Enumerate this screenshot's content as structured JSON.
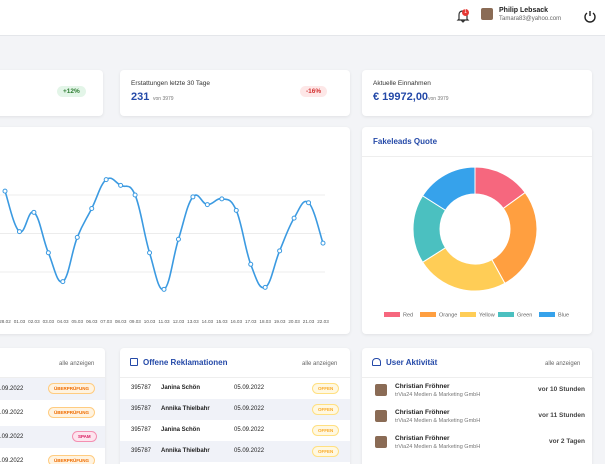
{
  "header": {
    "notification_count": "1",
    "user_name": "Philip Lebsack",
    "user_email": "Tamara83@yahoo.com"
  },
  "stats": [
    {
      "badge": "+12%"
    },
    {
      "title": "Erstattungen letzte 30 Tage",
      "value": "231",
      "sub": "von 3979",
      "badge": "-16%"
    },
    {
      "title": "Aktuelle Einnahmen",
      "value": "€ 19972,00",
      "sub": "von 3979"
    }
  ],
  "line_chart": {
    "type": "line",
    "categories": [
      "28.02",
      "01.03",
      "02.03",
      "03.03",
      "04.03",
      "05.03",
      "06.03",
      "07.03",
      "08.03",
      "09.03",
      "10.03",
      "11.03",
      "12.03",
      "13.03",
      "14.03",
      "15.03",
      "16.03",
      "17.03",
      "18.03",
      "19.03",
      "20.03",
      "21.03",
      "22.03"
    ],
    "values": [
      62,
      41,
      51,
      30,
      15,
      38,
      53,
      68,
      65,
      60,
      30,
      11,
      37,
      59,
      55,
      58,
      52,
      24,
      12,
      31,
      48,
      56,
      35
    ],
    "color": "#3b9ae1",
    "ylim": [
      0,
      80
    ],
    "yticks": [
      20,
      40,
      60
    ],
    "grid": true
  },
  "donut_chart": {
    "type": "pie",
    "title": "Fakeleads Quote",
    "categories": [
      "Red",
      "Orange",
      "Yellow",
      "Green",
      "Blue"
    ],
    "values": [
      15,
      27,
      24,
      18,
      16
    ],
    "colors": [
      "#f6677e",
      "#ff9f40",
      "#ffcd56",
      "#4bc0c0",
      "#36a2eb"
    ]
  },
  "left_table": {
    "link": "alle anzeigen",
    "rows": [
      {
        "date": ".09.2022",
        "status": "ÜBERPRÜFUNG"
      },
      {
        "date": ".09.2022",
        "status": "ÜBERPRÜFUNG"
      },
      {
        "date": ".09.2022",
        "status": "SPAM"
      },
      {
        "date": ".09.2022",
        "status": "ÜBERPRÜFUNG"
      }
    ]
  },
  "complaints": {
    "title": "Offene Reklamationen",
    "link": "alle anzeigen",
    "rows": [
      {
        "id": "395787",
        "name": "Janina Schön",
        "date": "05.09.2022",
        "status": "OFFEN"
      },
      {
        "id": "395787",
        "name": "Annika Thielbahr",
        "date": "05.09.2022",
        "status": "OFFEN"
      },
      {
        "id": "395787",
        "name": "Janina Schön",
        "date": "05.09.2022",
        "status": "OFFEN"
      },
      {
        "id": "395787",
        "name": "Annika Thielbahr",
        "date": "05.09.2022",
        "status": "OFFEN"
      }
    ]
  },
  "activity": {
    "title": "User Aktivität",
    "link": "alle anzeigen",
    "rows": [
      {
        "name": "Christian Fröhner",
        "company": "trVia24 Medien & Marketing GmbH",
        "time": "vor 10 Stunden"
      },
      {
        "name": "Christian Fröhner",
        "company": "trVia24 Medien & Marketing GmbH",
        "time": "vor 11 Stunden"
      },
      {
        "name": "Christian Fröhner",
        "company": "trVia24 Medien & Marketing GmbH",
        "time": "vor 2 Tagen"
      }
    ]
  }
}
